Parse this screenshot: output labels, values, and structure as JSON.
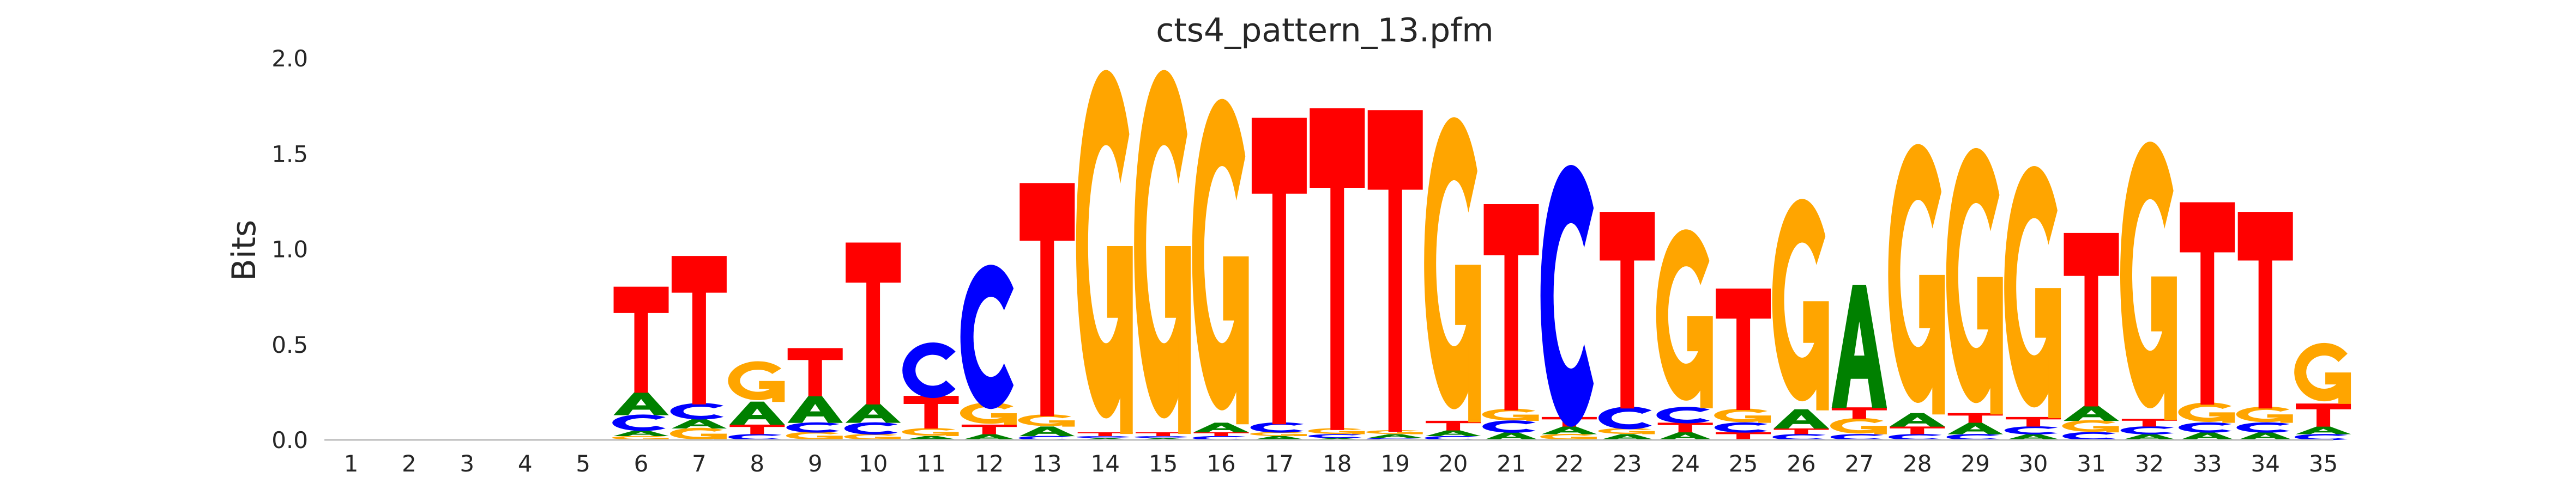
{
  "chart_data": {
    "type": "sequence-logo",
    "title": "cts4_pattern_13.pfm",
    "xlabel": "",
    "ylabel": "Bits",
    "ylim": [
      0,
      2.0
    ],
    "y_ticks": [
      "0.0",
      "0.5",
      "1.0",
      "1.5",
      "2.0"
    ],
    "x_ticks": [
      "1",
      "2",
      "3",
      "4",
      "5",
      "6",
      "7",
      "8",
      "9",
      "10",
      "11",
      "12",
      "13",
      "14",
      "15",
      "16",
      "17",
      "18",
      "19",
      "20",
      "21",
      "22",
      "23",
      "24",
      "25",
      "26",
      "27",
      "28",
      "29",
      "30",
      "31",
      "32",
      "33",
      "34",
      "35"
    ],
    "grid": false,
    "legend": "none",
    "colors": {
      "A": "#008000",
      "C": "#0000ff",
      "G": "#ffa500",
      "T": "#ff0000"
    },
    "positions": [
      {
        "pos": 1,
        "stack": []
      },
      {
        "pos": 2,
        "stack": []
      },
      {
        "pos": 3,
        "stack": []
      },
      {
        "pos": 4,
        "stack": []
      },
      {
        "pos": 5,
        "stack": []
      },
      {
        "pos": 6,
        "stack": [
          [
            "G",
            0.02
          ],
          [
            "A",
            0.03
          ],
          [
            "C",
            0.08
          ],
          [
            "A",
            0.12
          ],
          [
            "T",
            0.55
          ]
        ]
      },
      {
        "pos": 7,
        "stack": [
          [
            "G",
            0.06
          ],
          [
            "A",
            0.05
          ],
          [
            "C",
            0.08
          ],
          [
            "T",
            0.77
          ]
        ]
      },
      {
        "pos": 8,
        "stack": [
          [
            "C",
            0.03
          ],
          [
            "T",
            0.05
          ],
          [
            "A",
            0.12
          ],
          [
            "G",
            0.2
          ]
        ]
      },
      {
        "pos": 9,
        "stack": [
          [
            "G",
            0.04
          ],
          [
            "C",
            0.05
          ],
          [
            "A",
            0.14
          ],
          [
            "T",
            0.25
          ]
        ]
      },
      {
        "pos": 10,
        "stack": [
          [
            "G",
            0.03
          ],
          [
            "C",
            0.06
          ],
          [
            "A",
            0.1
          ],
          [
            "T",
            0.84
          ]
        ]
      },
      {
        "pos": 11,
        "stack": [
          [
            "A",
            0.02
          ],
          [
            "G",
            0.04
          ],
          [
            "T",
            0.17
          ],
          [
            "C",
            0.27
          ]
        ]
      },
      {
        "pos": 12,
        "stack": [
          [
            "A",
            0.03
          ],
          [
            "T",
            0.05
          ],
          [
            "G",
            0.11
          ],
          [
            "C",
            0.7
          ]
        ]
      },
      {
        "pos": 13,
        "stack": [
          [
            "C",
            0.02
          ],
          [
            "A",
            0.05
          ],
          [
            "G",
            0.06
          ],
          [
            "T",
            1.21
          ]
        ]
      },
      {
        "pos": 14,
        "stack": [
          [
            "A",
            0.01
          ],
          [
            "C",
            0.01
          ],
          [
            "T",
            0.02
          ],
          [
            "G",
            1.79
          ]
        ]
      },
      {
        "pos": 15,
        "stack": [
          [
            "A",
            0.01
          ],
          [
            "C",
            0.01
          ],
          [
            "T",
            0.02
          ],
          [
            "G",
            1.79
          ]
        ]
      },
      {
        "pos": 16,
        "stack": [
          [
            "C",
            0.02
          ],
          [
            "T",
            0.02
          ],
          [
            "A",
            0.05
          ],
          [
            "G",
            1.6
          ]
        ]
      },
      {
        "pos": 17,
        "stack": [
          [
            "A",
            0.02
          ],
          [
            "G",
            0.02
          ],
          [
            "C",
            0.05
          ],
          [
            "T",
            1.59
          ]
        ]
      },
      {
        "pos": 18,
        "stack": [
          [
            "A",
            0.01
          ],
          [
            "C",
            0.02
          ],
          [
            "G",
            0.03
          ],
          [
            "T",
            1.67
          ]
        ]
      },
      {
        "pos": 19,
        "stack": [
          [
            "C",
            0.01
          ],
          [
            "A",
            0.02
          ],
          [
            "G",
            0.02
          ],
          [
            "T",
            1.67
          ]
        ]
      },
      {
        "pos": 20,
        "stack": [
          [
            "C",
            0.02
          ],
          [
            "A",
            0.03
          ],
          [
            "T",
            0.05
          ],
          [
            "G",
            1.5
          ]
        ]
      },
      {
        "pos": 21,
        "stack": [
          [
            "A",
            0.04
          ],
          [
            "C",
            0.06
          ],
          [
            "G",
            0.06
          ],
          [
            "T",
            1.07
          ]
        ]
      },
      {
        "pos": 22,
        "stack": [
          [
            "G",
            0.03
          ],
          [
            "A",
            0.04
          ],
          [
            "T",
            0.05
          ],
          [
            "C",
            1.27
          ]
        ]
      },
      {
        "pos": 23,
        "stack": [
          [
            "A",
            0.03
          ],
          [
            "G",
            0.03
          ],
          [
            "C",
            0.11
          ],
          [
            "T",
            1.02
          ]
        ]
      },
      {
        "pos": 24,
        "stack": [
          [
            "A",
            0.04
          ],
          [
            "T",
            0.05
          ],
          [
            "C",
            0.08
          ],
          [
            "G",
            0.88
          ]
        ]
      },
      {
        "pos": 25,
        "stack": [
          [
            "T",
            0.04
          ],
          [
            "C",
            0.05
          ],
          [
            "G",
            0.07
          ],
          [
            "T",
            0.63
          ]
        ]
      },
      {
        "pos": 26,
        "stack": [
          [
            "C",
            0.03
          ],
          [
            "T",
            0.03
          ],
          [
            "A",
            0.1
          ],
          [
            "G",
            1.04
          ]
        ]
      },
      {
        "pos": 27,
        "stack": [
          [
            "C",
            0.03
          ],
          [
            "G",
            0.08
          ],
          [
            "T",
            0.06
          ],
          [
            "A",
            0.64
          ]
        ]
      },
      {
        "pos": 28,
        "stack": [
          [
            "C",
            0.03
          ],
          [
            "T",
            0.04
          ],
          [
            "A",
            0.07
          ],
          [
            "G",
            1.33
          ]
        ]
      },
      {
        "pos": 29,
        "stack": [
          [
            "C",
            0.03
          ],
          [
            "A",
            0.06
          ],
          [
            "T",
            0.05
          ],
          [
            "G",
            1.31
          ]
        ]
      },
      {
        "pos": 30,
        "stack": [
          [
            "A",
            0.03
          ],
          [
            "C",
            0.04
          ],
          [
            "T",
            0.05
          ],
          [
            "G",
            1.24
          ]
        ]
      },
      {
        "pos": 31,
        "stack": [
          [
            "C",
            0.04
          ],
          [
            "G",
            0.06
          ],
          [
            "A",
            0.08
          ],
          [
            "T",
            0.9
          ]
        ]
      },
      {
        "pos": 32,
        "stack": [
          [
            "A",
            0.03
          ],
          [
            "C",
            0.04
          ],
          [
            "T",
            0.04
          ],
          [
            "G",
            1.37
          ]
        ]
      },
      {
        "pos": 33,
        "stack": [
          [
            "A",
            0.04
          ],
          [
            "C",
            0.05
          ],
          [
            "G",
            0.1
          ],
          [
            "T",
            1.05
          ]
        ]
      },
      {
        "pos": 34,
        "stack": [
          [
            "A",
            0.04
          ],
          [
            "C",
            0.05
          ],
          [
            "G",
            0.08
          ],
          [
            "T",
            1.02
          ]
        ]
      },
      {
        "pos": 35,
        "stack": [
          [
            "C",
            0.03
          ],
          [
            "A",
            0.04
          ],
          [
            "T",
            0.12
          ],
          [
            "G",
            0.3
          ]
        ]
      }
    ]
  }
}
